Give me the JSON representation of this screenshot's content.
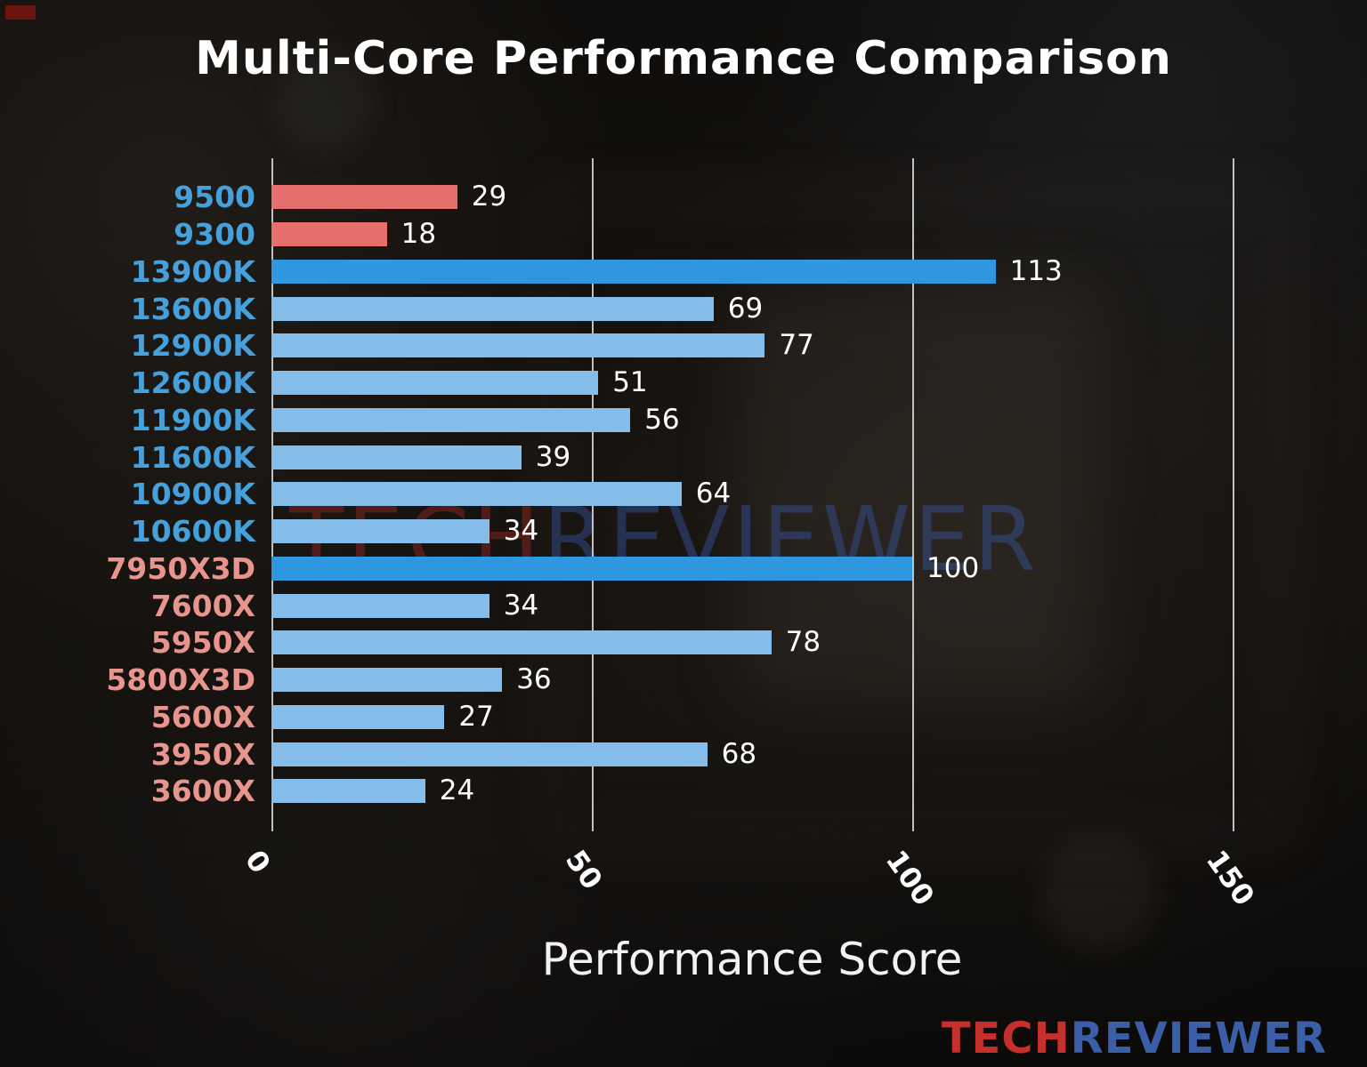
{
  "title": "Multi-Core Performance Comparison",
  "xlabel": "Performance Score",
  "watermark": {
    "part1": "TECH",
    "part2": "REVIEWER"
  },
  "logo": {
    "part1": "TECH",
    "part2": "REVIEWER"
  },
  "chart_data": {
    "type": "bar",
    "orientation": "horizontal",
    "title": "Multi-Core Performance Comparison",
    "xlabel": "Performance Score",
    "ylabel": "",
    "xlim": [
      0,
      150
    ],
    "xticks": [
      0,
      50,
      100,
      150
    ],
    "grid": true,
    "bars": [
      {
        "label": "9500",
        "value": 29,
        "label_color": "blue",
        "bar_color": "red"
      },
      {
        "label": "9300",
        "value": 18,
        "label_color": "blue",
        "bar_color": "red"
      },
      {
        "label": "13900K",
        "value": 113,
        "label_color": "blue",
        "bar_color": "strong-blue"
      },
      {
        "label": "13600K",
        "value": 69,
        "label_color": "blue",
        "bar_color": "light-blue"
      },
      {
        "label": "12900K",
        "value": 77,
        "label_color": "blue",
        "bar_color": "light-blue"
      },
      {
        "label": "12600K",
        "value": 51,
        "label_color": "blue",
        "bar_color": "light-blue"
      },
      {
        "label": "11900K",
        "value": 56,
        "label_color": "blue",
        "bar_color": "light-blue"
      },
      {
        "label": "11600K",
        "value": 39,
        "label_color": "blue",
        "bar_color": "light-blue"
      },
      {
        "label": "10900K",
        "value": 64,
        "label_color": "blue",
        "bar_color": "light-blue"
      },
      {
        "label": "10600K",
        "value": 34,
        "label_color": "blue",
        "bar_color": "light-blue"
      },
      {
        "label": "7950X3D",
        "value": 100,
        "label_color": "red",
        "bar_color": "strong-blue"
      },
      {
        "label": "7600X",
        "value": 34,
        "label_color": "red",
        "bar_color": "light-blue"
      },
      {
        "label": "5950X",
        "value": 78,
        "label_color": "red",
        "bar_color": "light-blue"
      },
      {
        "label": "5800X3D",
        "value": 36,
        "label_color": "red",
        "bar_color": "light-blue"
      },
      {
        "label": "5600X",
        "value": 27,
        "label_color": "red",
        "bar_color": "light-blue"
      },
      {
        "label": "3950X",
        "value": 68,
        "label_color": "red",
        "bar_color": "light-blue"
      },
      {
        "label": "3600X",
        "value": 24,
        "label_color": "red",
        "bar_color": "light-blue"
      }
    ],
    "colors": {
      "red_bar": "#e76f6b",
      "light_blue_bar": "#85bde8",
      "strong_blue_bar": "#2f96e0",
      "blue_label": "#45a0dc",
      "red_label": "#e8958e",
      "value_text": "#ffffff",
      "gridline": "#dedede",
      "background": "#100e0c"
    }
  }
}
